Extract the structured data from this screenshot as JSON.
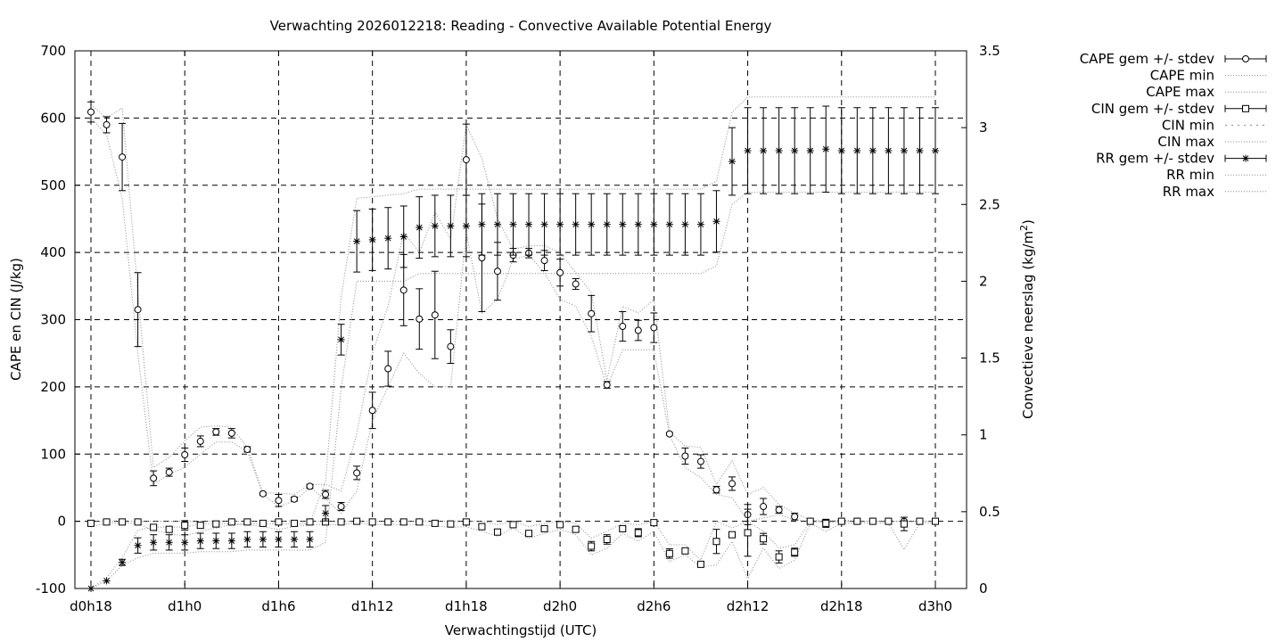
{
  "chart_data": {
    "type": "line",
    "title": "Verwachting 2026012218: Reading - Convective Available Potential Energy",
    "xlabel": "Verwachtingstijd (UTC)",
    "ylabel": "CAPE en CIN (J/kg)",
    "y2label_main": "Convectieve neerslag (kg/m",
    "y2label_sup": "2",
    "y2label_end": ")",
    "xlim": [
      18,
      72
    ],
    "ylim": [
      -100,
      700
    ],
    "y2lim": [
      0,
      3.5
    ],
    "xticks": [
      {
        "x": 18,
        "label": "d0h18"
      },
      {
        "x": 24,
        "label": "d1h0"
      },
      {
        "x": 30,
        "label": "d1h6"
      },
      {
        "x": 36,
        "label": "d1h12"
      },
      {
        "x": 42,
        "label": "d1h18"
      },
      {
        "x": 48,
        "label": "d2h0"
      },
      {
        "x": 54,
        "label": "d2h6"
      },
      {
        "x": 60,
        "label": "d2h12"
      },
      {
        "x": 66,
        "label": "d2h18"
      },
      {
        "x": 72,
        "label": "d3h0"
      }
    ],
    "yticks": [
      "-100",
      "0",
      "100",
      "200",
      "300",
      "400",
      "500",
      "600",
      "700"
    ],
    "y2ticks": [
      "0",
      "0.5",
      "1",
      "1.5",
      "2",
      "2.5",
      "3",
      "3.5"
    ],
    "grid": true,
    "legend_position": "outside-right",
    "legend": [
      "CAPE gem +/- stdev",
      "CAPE min",
      "CAPE max",
      "CIN gem +/- stdev",
      "CIN min",
      "CIN max",
      "RR gem +/- stdev",
      "RR min",
      "RR max"
    ],
    "x": [
      18,
      19,
      20,
      21,
      22,
      23,
      24,
      25,
      26,
      27,
      28,
      29,
      30,
      31,
      32,
      33,
      34,
      35,
      36,
      37,
      38,
      39,
      40,
      41,
      42,
      43,
      44,
      45,
      46,
      47,
      48,
      49,
      50,
      51,
      52,
      53,
      54,
      55,
      56,
      57,
      58,
      59,
      60,
      61,
      62,
      63,
      64,
      65,
      66,
      67,
      68,
      69,
      70,
      71,
      72
    ],
    "cape": {
      "mean": [
        609,
        590,
        542,
        315,
        64,
        73,
        99,
        119,
        133,
        131,
        107,
        41,
        31,
        33,
        52,
        40,
        22,
        72,
        165,
        227,
        344,
        301,
        307,
        260,
        538,
        392,
        372,
        396,
        399,
        388,
        370,
        353,
        309,
        203,
        290,
        284,
        288,
        130,
        97,
        89,
        47,
        56,
        10,
        22,
        17,
        7,
        0,
        -2,
        0,
        0,
        0,
        0,
        0,
        0,
        0
      ],
      "sd": [
        15,
        12,
        50,
        55,
        11,
        6,
        10,
        8,
        5,
        7,
        4,
        2,
        9,
        3,
        3,
        6,
        6,
        10,
        27,
        26,
        53,
        45,
        65,
        25,
        53,
        80,
        43,
        10,
        7,
        15,
        20,
        8,
        27,
        5,
        22,
        15,
        22,
        2,
        12,
        10,
        5,
        10,
        15,
        12,
        5,
        5,
        0,
        4,
        0,
        0,
        0,
        0,
        0,
        0,
        0
      ],
      "min": [
        600,
        575,
        480,
        250,
        55,
        70,
        80,
        100,
        118,
        118,
        104,
        40,
        22,
        30,
        50,
        33,
        12,
        45,
        150,
        200,
        250,
        220,
        200,
        200,
        430,
        310,
        330,
        390,
        396,
        370,
        330,
        320,
        275,
        200,
        255,
        255,
        255,
        128,
        80,
        65,
        40,
        35,
        0,
        5,
        10,
        2,
        0,
        -2,
        0,
        0,
        0,
        0,
        0,
        0,
        0
      ],
      "max": [
        620,
        600,
        615,
        340,
        80,
        95,
        120,
        140,
        142,
        140,
        110,
        42,
        42,
        40,
        55,
        55,
        45,
        130,
        250,
        320,
        430,
        400,
        460,
        420,
        590,
        540,
        450,
        405,
        410,
        410,
        400,
        370,
        340,
        210,
        320,
        310,
        330,
        133,
        112,
        110,
        55,
        90,
        40,
        50,
        25,
        12,
        2,
        0,
        2,
        0,
        0,
        0,
        0,
        0,
        0
      ]
    },
    "cin": {
      "mean": [
        -3,
        -1,
        -1,
        -1,
        -9,
        -12,
        -6,
        -6,
        -4,
        -1,
        -1,
        -3,
        -1,
        -3,
        -1,
        -1,
        -1,
        0,
        -1,
        -1,
        -1,
        -1,
        -3,
        -4,
        -1,
        -8,
        -16,
        -5,
        -18,
        -11,
        -5,
        -12,
        -37,
        -27,
        -11,
        -17,
        -2,
        -48,
        -44,
        -64,
        -30,
        -20,
        -17,
        -26,
        -53,
        -46,
        0,
        -3,
        0,
        0,
        0,
        0,
        -4,
        0,
        0
      ],
      "sd": [
        4,
        2,
        2,
        2,
        3,
        3,
        7,
        4,
        3,
        2,
        2,
        3,
        4,
        2,
        2,
        2,
        2,
        2,
        2,
        2,
        2,
        2,
        2,
        2,
        4,
        3,
        2,
        2,
        2,
        3,
        3,
        3,
        7,
        7,
        3,
        6,
        4,
        7,
        4,
        2,
        18,
        4,
        35,
        8,
        9,
        6,
        1,
        6,
        1,
        1,
        1,
        1,
        10,
        1,
        1
      ],
      "min": [
        -8,
        -3,
        -3,
        -3,
        -14,
        -18,
        -22,
        -15,
        -10,
        -5,
        -5,
        -8,
        -12,
        -8,
        -5,
        -5,
        -5,
        -2,
        -5,
        -5,
        -5,
        -5,
        -7,
        -9,
        -8,
        -15,
        -22,
        -10,
        -25,
        -18,
        -12,
        -20,
        -50,
        -40,
        -18,
        -30,
        -15,
        -60,
        -50,
        -68,
        -65,
        -30,
        -85,
        -40,
        -70,
        -58,
        -3,
        -15,
        -3,
        -3,
        -3,
        -3,
        -42,
        -3,
        -3
      ],
      "max": [
        0,
        0,
        0,
        0,
        0,
        0,
        0,
        0,
        0,
        0,
        0,
        0,
        0,
        0,
        0,
        0,
        0,
        0,
        0,
        0,
        0,
        0,
        0,
        0,
        0,
        0,
        -5,
        0,
        -8,
        -3,
        0,
        -3,
        -25,
        -15,
        -3,
        -5,
        0,
        -35,
        -35,
        -58,
        0,
        -10,
        0,
        -15,
        -40,
        -35,
        0,
        0,
        0,
        0,
        0,
        0,
        0,
        0,
        0
      ]
    },
    "rr": {
      "mean": [
        0,
        0.05,
        0.17,
        0.28,
        0.3,
        0.3,
        0.3,
        0.31,
        0.31,
        0.31,
        0.32,
        0.32,
        0.32,
        0.32,
        0.32,
        0.49,
        1.62,
        2.26,
        2.27,
        2.28,
        2.29,
        2.35,
        2.36,
        2.36,
        2.36,
        2.37,
        2.37,
        2.37,
        2.37,
        2.37,
        2.37,
        2.37,
        2.37,
        2.37,
        2.37,
        2.37,
        2.37,
        2.37,
        2.37,
        2.37,
        2.39,
        2.78,
        2.85,
        2.85,
        2.85,
        2.85,
        2.85,
        2.86,
        2.85,
        2.85,
        2.85,
        2.85,
        2.85,
        2.85,
        2.85
      ],
      "sd": [
        0,
        0,
        0.02,
        0.05,
        0.05,
        0.05,
        0.05,
        0.05,
        0.05,
        0.05,
        0.05,
        0.05,
        0.05,
        0.05,
        0.05,
        0.05,
        0.1,
        0.2,
        0.2,
        0.2,
        0.2,
        0.2,
        0.2,
        0.2,
        0.2,
        0.2,
        0.2,
        0.2,
        0.2,
        0.2,
        0.2,
        0.2,
        0.2,
        0.2,
        0.2,
        0.2,
        0.2,
        0.2,
        0.2,
        0.2,
        0.2,
        0.22,
        0.28,
        0.28,
        0.28,
        0.28,
        0.28,
        0.28,
        0.28,
        0.28,
        0.28,
        0.28,
        0.28,
        0.28,
        0.28
      ],
      "min": [
        0,
        0.05,
        0.15,
        0.2,
        0.23,
        0.23,
        0.23,
        0.24,
        0.24,
        0.24,
        0.25,
        0.25,
        0.25,
        0.25,
        0.25,
        0.3,
        1.3,
        2.0,
        2.0,
        2.0,
        2.0,
        2.05,
        2.05,
        2.05,
        2.05,
        2.05,
        2.05,
        2.05,
        2.05,
        2.05,
        2.05,
        2.05,
        2.05,
        2.05,
        2.05,
        2.05,
        2.05,
        2.05,
        2.05,
        2.05,
        2.1,
        2.5,
        2.58,
        2.58,
        2.58,
        2.58,
        2.58,
        2.58,
        2.58,
        2.58,
        2.58,
        2.58,
        2.58,
        2.58,
        2.58
      ],
      "max": [
        0,
        0.07,
        0.2,
        0.38,
        0.4,
        0.4,
        0.4,
        0.42,
        0.42,
        0.42,
        0.42,
        0.42,
        0.42,
        0.42,
        0.42,
        0.7,
        1.9,
        2.54,
        2.55,
        2.56,
        2.57,
        2.6,
        2.6,
        2.6,
        2.6,
        2.6,
        2.6,
        2.6,
        2.6,
        2.6,
        2.6,
        2.6,
        2.6,
        2.6,
        2.6,
        2.6,
        2.6,
        2.6,
        2.6,
        2.6,
        2.65,
        3.1,
        3.2,
        3.2,
        3.2,
        3.2,
        3.2,
        3.2,
        3.2,
        3.2,
        3.2,
        3.2,
        3.2,
        3.2,
        3.2
      ]
    }
  }
}
